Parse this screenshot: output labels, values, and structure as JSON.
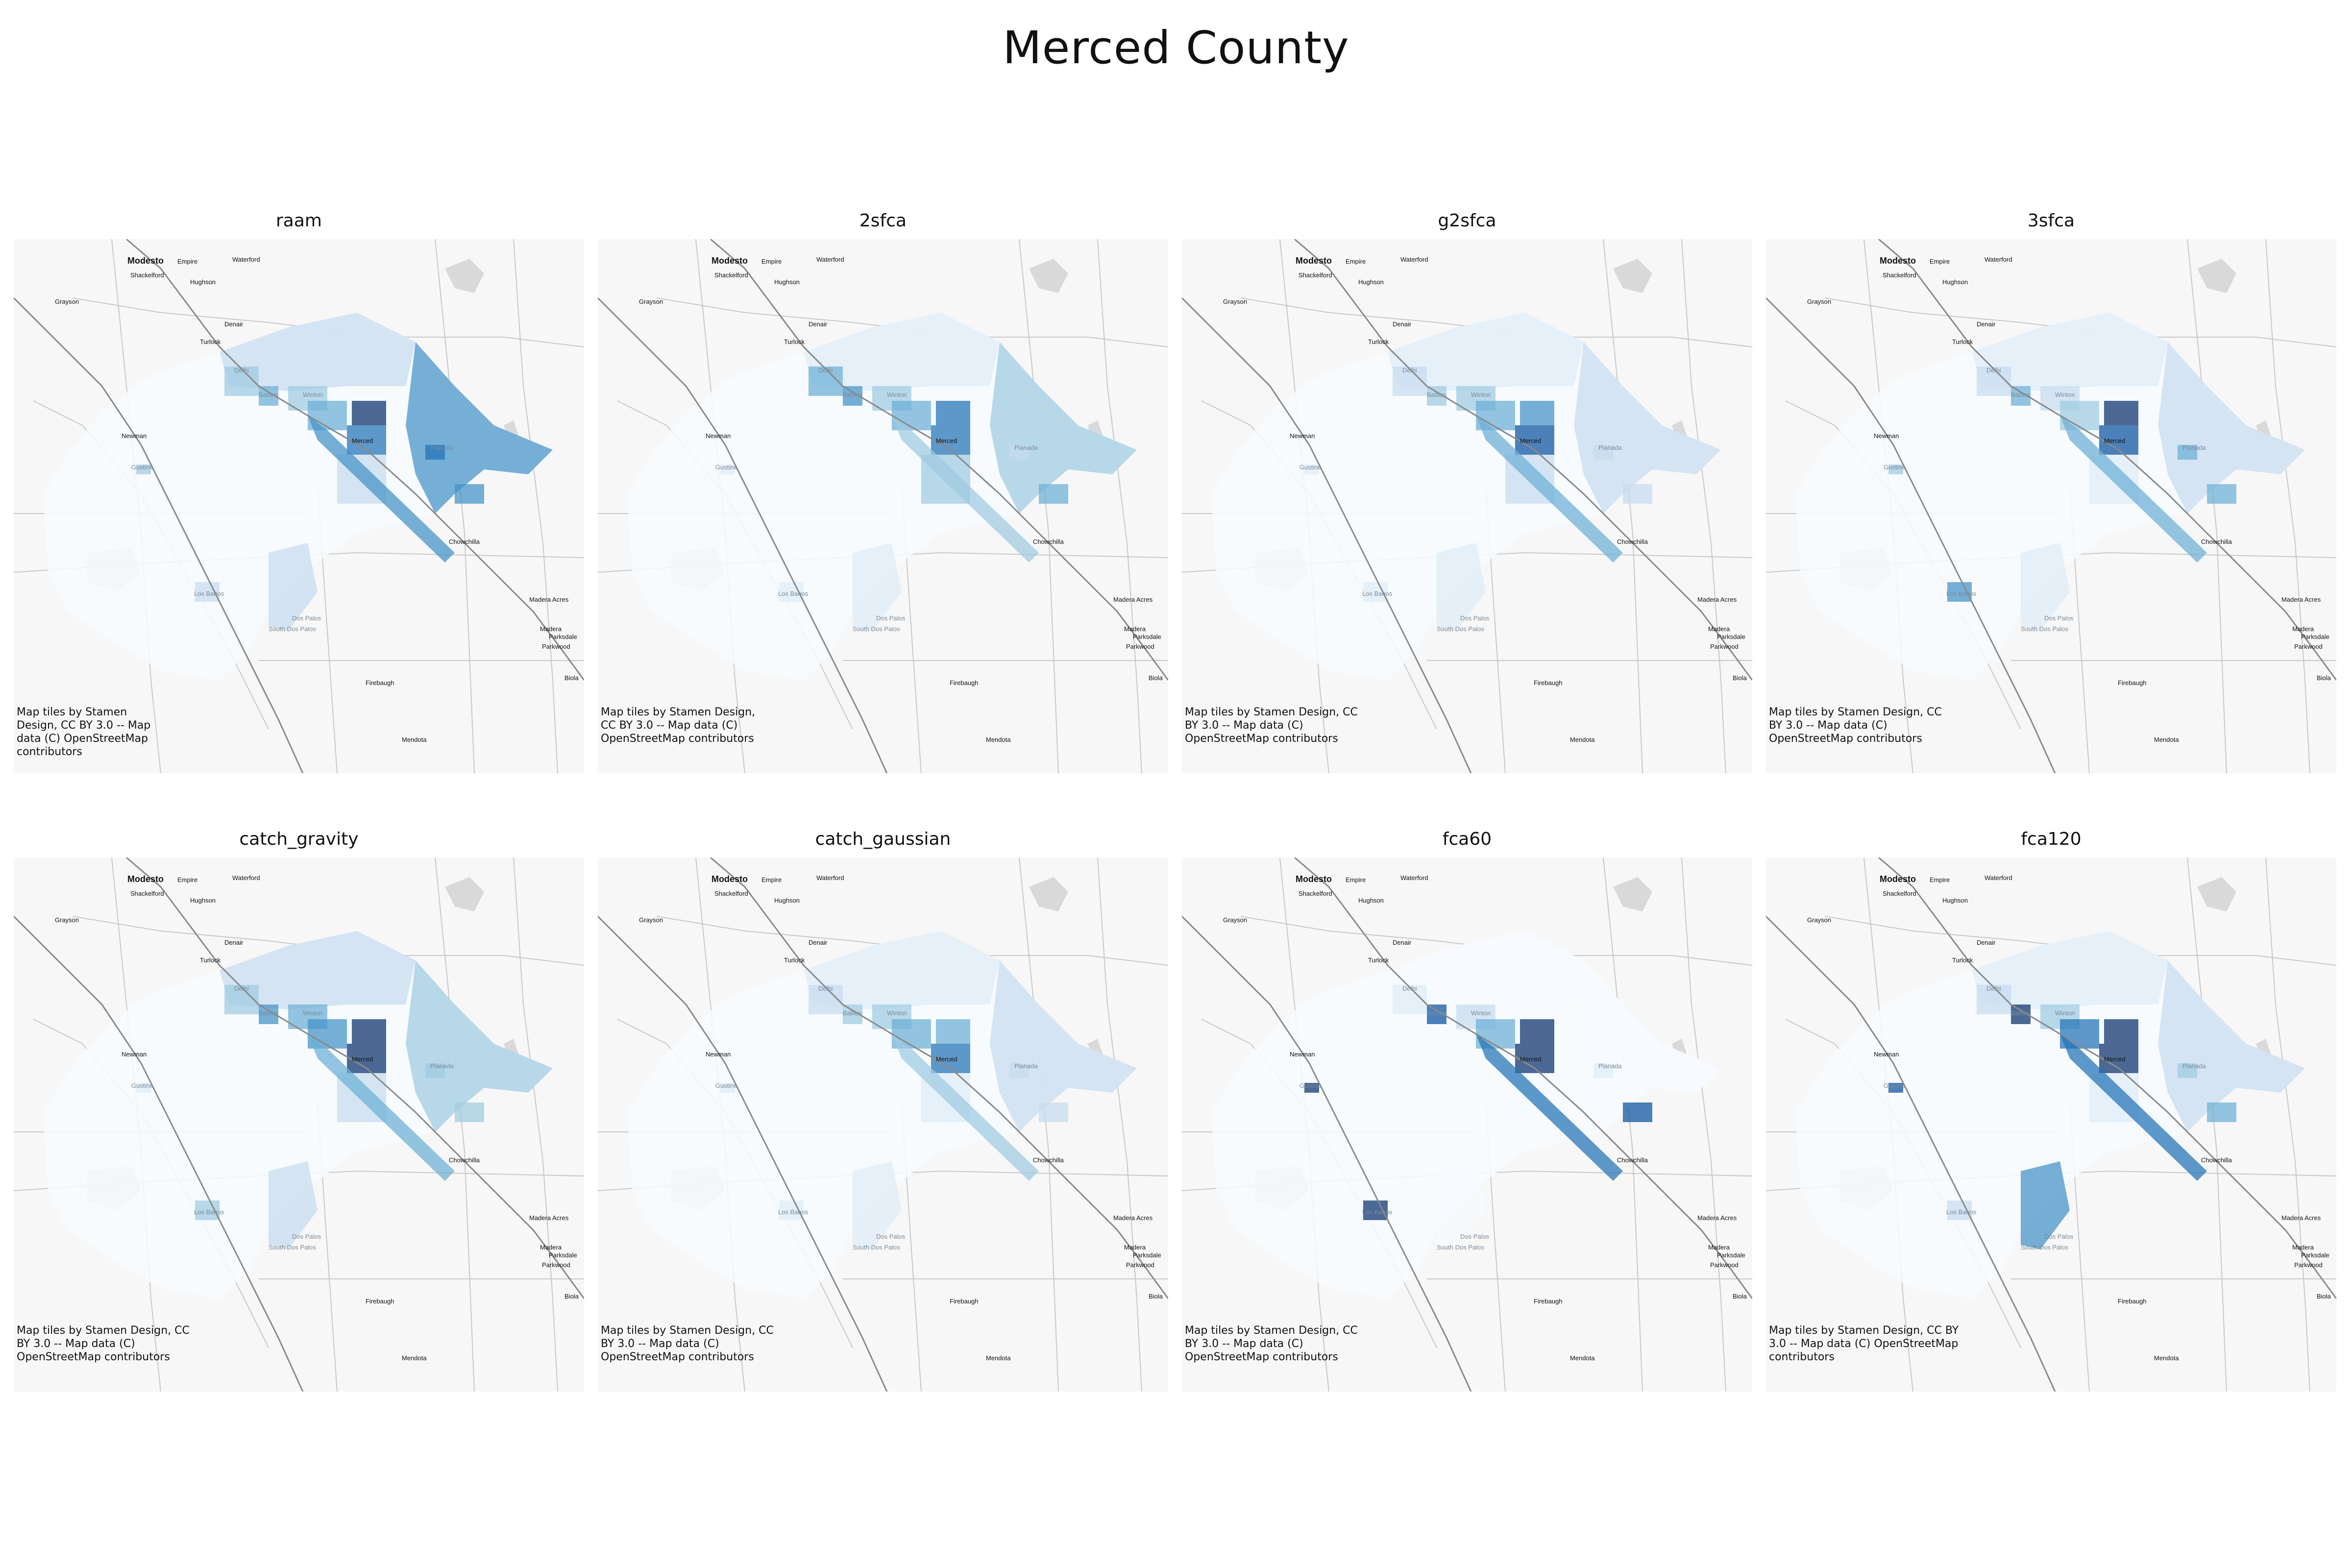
{
  "figure": {
    "title": "Merced County"
  },
  "panels": [
    {
      "title": "raam",
      "attribution": "Map tiles by Stamen Design, CC BY 3.0 -- Map data (C) OpenStreetMap contributors",
      "attribution_width": 280
    },
    {
      "title": "2sfca",
      "attribution": "Map tiles by Stamen Design, CC BY 3.0 -- Map data (C) OpenStreetMap contributors",
      "attribution_width": 330
    },
    {
      "title": "g2sfca",
      "attribution": "Map tiles by Stamen Design, CC BY 3.0 -- Map data (C) OpenStreetMap contributors",
      "attribution_width": 360
    },
    {
      "title": "3sfca",
      "attribution": "Map tiles by Stamen Design, CC BY 3.0 -- Map data (C) OpenStreetMap contributors",
      "attribution_width": 360
    },
    {
      "title": "catch_gravity",
      "attribution": "Map tiles by Stamen Design, CC BY 3.0 -- Map data (C) OpenStreetMap contributors",
      "attribution_width": 360
    },
    {
      "title": "catch_gaussian",
      "attribution": "Map tiles by Stamen Design, CC BY 3.0 -- Map data (C) OpenStreetMap contributors",
      "attribution_width": 360
    },
    {
      "title": "fca60",
      "attribution": "Map tiles by Stamen Design, CC BY 3.0 -- Map data (C) OpenStreetMap contributors",
      "attribution_width": 360
    },
    {
      "title": "fca120",
      "attribution": "Map tiles by Stamen Design, CC BY 3.0 -- Map data (C) OpenStreetMap contributors",
      "attribution_width": 400
    }
  ],
  "places": [
    {
      "name": "Modesto",
      "style": "bold"
    },
    {
      "name": "Empire",
      "style": "normal"
    },
    {
      "name": "Waterford",
      "style": "normal"
    },
    {
      "name": "Shackelford",
      "style": "normal"
    },
    {
      "name": "Hughson",
      "style": "normal"
    },
    {
      "name": "Grayson",
      "style": "normal"
    },
    {
      "name": "Denair",
      "style": "normal"
    },
    {
      "name": "Turlock",
      "style": "normal"
    },
    {
      "name": "Delhi",
      "style": "grey"
    },
    {
      "name": "Winton",
      "style": "grey"
    },
    {
      "name": "Ballico",
      "style": "grey"
    },
    {
      "name": "Newman",
      "style": "normal"
    },
    {
      "name": "Merced",
      "style": "normal"
    },
    {
      "name": "Planada",
      "style": "grey"
    },
    {
      "name": "Gustine",
      "style": "grey"
    },
    {
      "name": "Chowchilla",
      "style": "normal"
    },
    {
      "name": "Los Banos",
      "style": "grey"
    },
    {
      "name": "Madera Acres",
      "style": "normal"
    },
    {
      "name": "Dos Palos",
      "style": "grey"
    },
    {
      "name": "South Dos Palos",
      "style": "grey"
    },
    {
      "name": "Madera",
      "style": "normal"
    },
    {
      "name": "Parksdale",
      "style": "normal"
    },
    {
      "name": "Parkwood",
      "style": "normal"
    },
    {
      "name": "Firebaugh",
      "style": "normal"
    },
    {
      "name": "Biola",
      "style": "normal"
    },
    {
      "name": "Mendota",
      "style": "normal"
    }
  ],
  "colors": {
    "basemap_bg": "#f7f7f7",
    "basemap_road": "#c8c8c8",
    "basemap_highway": "#8a8a8a",
    "basemap_water": "#d9d9d9",
    "choropleth_scale": [
      "#f7fbff",
      "#deebf7",
      "#c6dbef",
      "#9ecae1",
      "#6baed6",
      "#4292c6",
      "#2171b5",
      "#08519c",
      "#08306b"
    ]
  },
  "legend": "none"
}
